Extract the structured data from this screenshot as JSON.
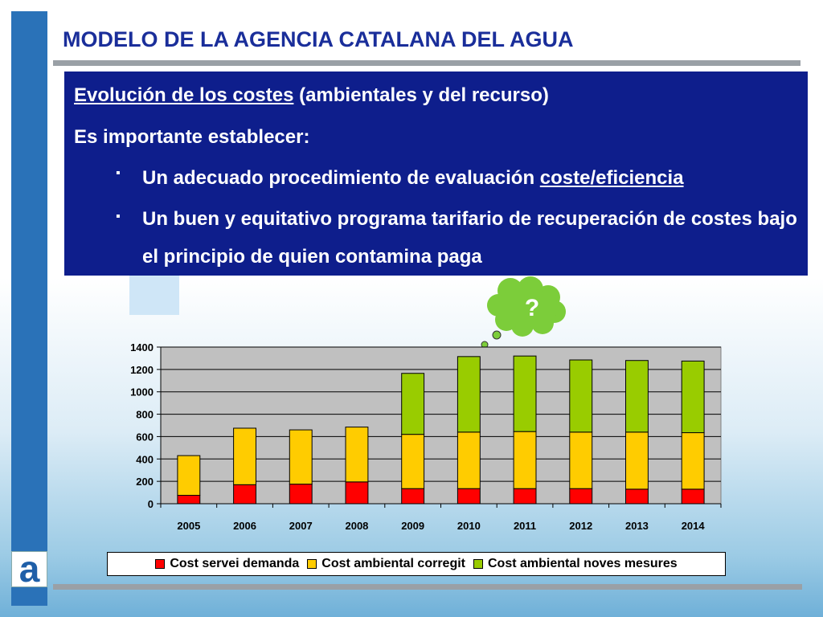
{
  "slide": {
    "title": "MODELO DE LA AGENCIA CATALANA DEL AGUA",
    "logo_letter": "a"
  },
  "textbox": {
    "line1_underlined": "Evolución de los costes",
    "line1_rest": " (ambientales y del recurso)",
    "line2": "Es importante establecer:",
    "bullet1_text": "Un adecuado procedimiento de evaluación ",
    "bullet1_underlined": "coste/eficiencia",
    "bullet2_text": "Un buen y equitativo programa tarifario de recuperación de costes bajo el principio de quien contamina paga",
    "bullet_glyph": "▪"
  },
  "thought_bubble": {
    "text": "?",
    "color": "#7ccd3a"
  },
  "chart_data": {
    "type": "bar",
    "stacked": true,
    "categories": [
      "2005",
      "2006",
      "2007",
      "2008",
      "2009",
      "2010",
      "2011",
      "2012",
      "2013",
      "2014"
    ],
    "series": [
      {
        "name": "Cost servei demanda",
        "color": "#ff0000",
        "values": [
          75,
          170,
          175,
          195,
          135,
          135,
          135,
          135,
          130,
          130
        ]
      },
      {
        "name": "Cost ambiental corregit",
        "color": "#ffcc00",
        "values": [
          355,
          505,
          485,
          490,
          485,
          505,
          510,
          505,
          510,
          505
        ]
      },
      {
        "name": "Cost ambiental noves mesures",
        "color": "#99cc00",
        "values": [
          0,
          0,
          0,
          0,
          545,
          675,
          675,
          645,
          640,
          640
        ]
      }
    ],
    "ylim": [
      0,
      1400
    ],
    "yticks": [
      0,
      200,
      400,
      600,
      800,
      1000,
      1200,
      1400
    ],
    "grid": true,
    "plot_background": "#c0c0c0",
    "legend_position": "bottom"
  }
}
